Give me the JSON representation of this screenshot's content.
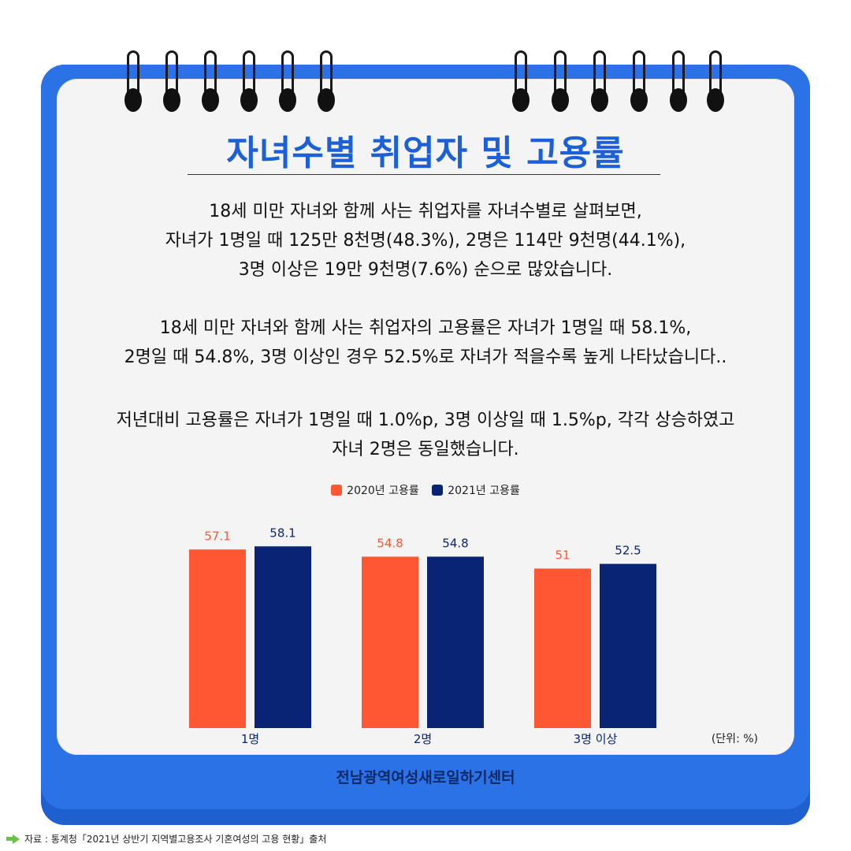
{
  "title": "자녀수별 취업자 및 고용률",
  "paragraphs": [
    [
      "18세 미만 자녀와 함께 사는 취업자를 자녀수별로 살펴보면,",
      "자녀가 1명일 때 125만 8천명(48.3%), 2명은 114만 9천명(44.1%),",
      "3명 이상은 19만 9천명(7.6%) 순으로 많았습니다."
    ],
    [
      "18세 미만 자녀와 함께 사는 취업자의 고용률은 자녀가 1명일 때 58.1%,",
      "2명일 때 54.8%, 3명 이상인 경우 52.5%로 자녀가 적을수록 높게 나타났습니다.."
    ],
    [
      "저년대비 고용률은 자녀가 1명일 때 1.0%p, 3명 이상일 때 1.5%p, 각각 상승하였고",
      "자녀 2명은 동일했습니다."
    ]
  ],
  "colors": {
    "series_2020": "#ff5733",
    "series_2021": "#0a2475",
    "accent": "#2a72e6",
    "title": "#1d5fd6"
  },
  "chart_data": {
    "type": "bar",
    "categories": [
      "1명",
      "2명",
      "3명 이상"
    ],
    "series": [
      {
        "name": "2020년 고용률",
        "values": [
          57.1,
          54.8,
          51
        ]
      },
      {
        "name": "2021년 고용률",
        "values": [
          58.1,
          54.8,
          52.5
        ]
      }
    ],
    "value_labels": [
      [
        "57.1",
        "54.8",
        "51"
      ],
      [
        "58.1",
        "54.8",
        "52.5"
      ]
    ],
    "unit_label": "(단위: %)",
    "legend_position": "top-center",
    "grid": false
  },
  "footer": {
    "org": "전남광역여성새로일하기센터"
  },
  "source": "자료 : 통계청「2021년 상반기 지역별고용조사 기혼여성의 고용 현황」출처"
}
